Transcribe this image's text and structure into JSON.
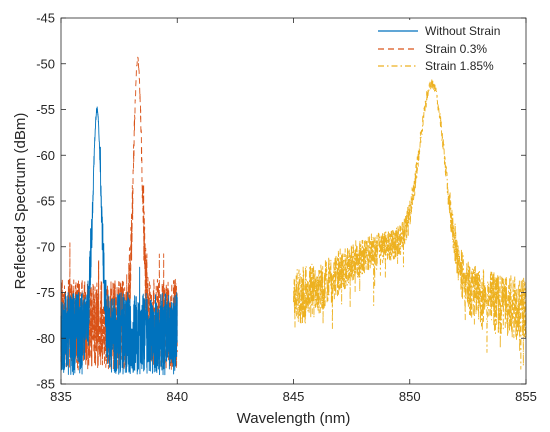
{
  "chart_data": {
    "type": "line",
    "xlabel": "Wavelength (nm)",
    "ylabel": "Reflected Spectrum (dBm)",
    "xlim": [
      835,
      855
    ],
    "ylim": [
      -85,
      -45
    ],
    "x_ticks": [
      835,
      840,
      845,
      850,
      855
    ],
    "y_ticks": [
      -45,
      -50,
      -55,
      -60,
      -65,
      -70,
      -75,
      -80,
      -85
    ],
    "grid": false,
    "legend_position": "top-right",
    "series": [
      {
        "name": "Without Strain",
        "color": "#0072BD",
        "dash": "solid",
        "noise_range": [
          835,
          840
        ],
        "noise_mean": -79.5,
        "noise_span": 4.5,
        "peak_center": 836.55,
        "peak_value": -55,
        "peak_width": 0.18
      },
      {
        "name": "Strain 0.3%",
        "color": "#D95319",
        "dash": "dashed",
        "noise_range": [
          835,
          840
        ],
        "noise_mean": -78.5,
        "noise_span": 5,
        "peak_center": 838.3,
        "peak_value": -49.5,
        "peak_width": 0.18
      },
      {
        "name": "Strain 1.85%",
        "color": "#EDB120",
        "dash": "dashdot",
        "noise_range": [
          845,
          855
        ],
        "noise_mean": -77,
        "noise_span": 6,
        "peak_center": 850.95,
        "peak_value": -52.2,
        "peak_width": 0.55
      }
    ]
  }
}
